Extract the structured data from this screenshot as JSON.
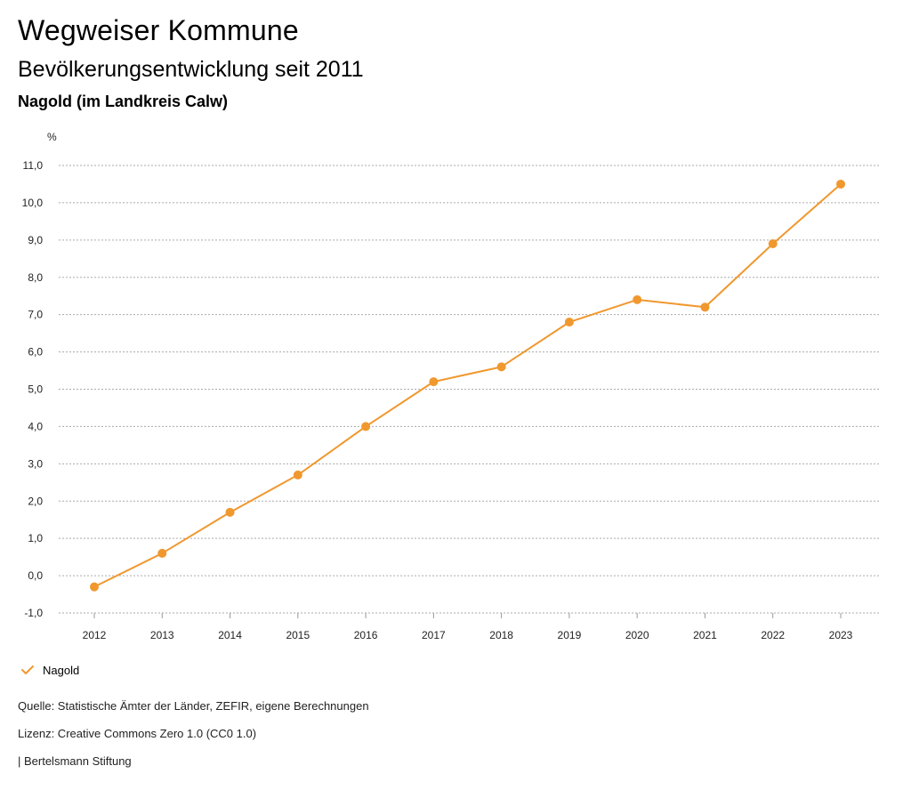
{
  "header": {
    "title": "Wegweiser Kommune",
    "subtitle": "Bevölkerungsentwicklung seit 2011",
    "region": "Nagold (im Landkreis Calw)"
  },
  "legend": {
    "label": "Nagold",
    "icon": "check-icon"
  },
  "footer": {
    "source": "Quelle: Statistische Ämter der Länder, ZEFIR, eigene Berechnungen",
    "license": "Lizenz: Creative Commons Zero 1.0 (CC0 1.0)",
    "publisher": "| Bertelsmann Stiftung"
  },
  "colors": {
    "series": "#f0982e",
    "grid": "#aaaaaa"
  },
  "chart_data": {
    "type": "line",
    "title": "Bevölkerungsentwicklung seit 2011",
    "ylabel": "%",
    "xlabel": "",
    "ylim": [
      -1,
      11
    ],
    "yticks": [
      "-1,0",
      "0,0",
      "1,0",
      "2,0",
      "3,0",
      "4,0",
      "5,0",
      "6,0",
      "7,0",
      "8,0",
      "9,0",
      "10,0",
      "11,0"
    ],
    "grid": true,
    "legend_position": "bottom-left",
    "categories": [
      "2012",
      "2013",
      "2014",
      "2015",
      "2016",
      "2017",
      "2018",
      "2019",
      "2020",
      "2021",
      "2022",
      "2023"
    ],
    "series": [
      {
        "name": "Nagold",
        "values": [
          -0.3,
          0.6,
          1.7,
          2.7,
          4.0,
          5.2,
          5.6,
          6.8,
          7.4,
          7.2,
          8.9,
          10.5
        ]
      }
    ]
  }
}
